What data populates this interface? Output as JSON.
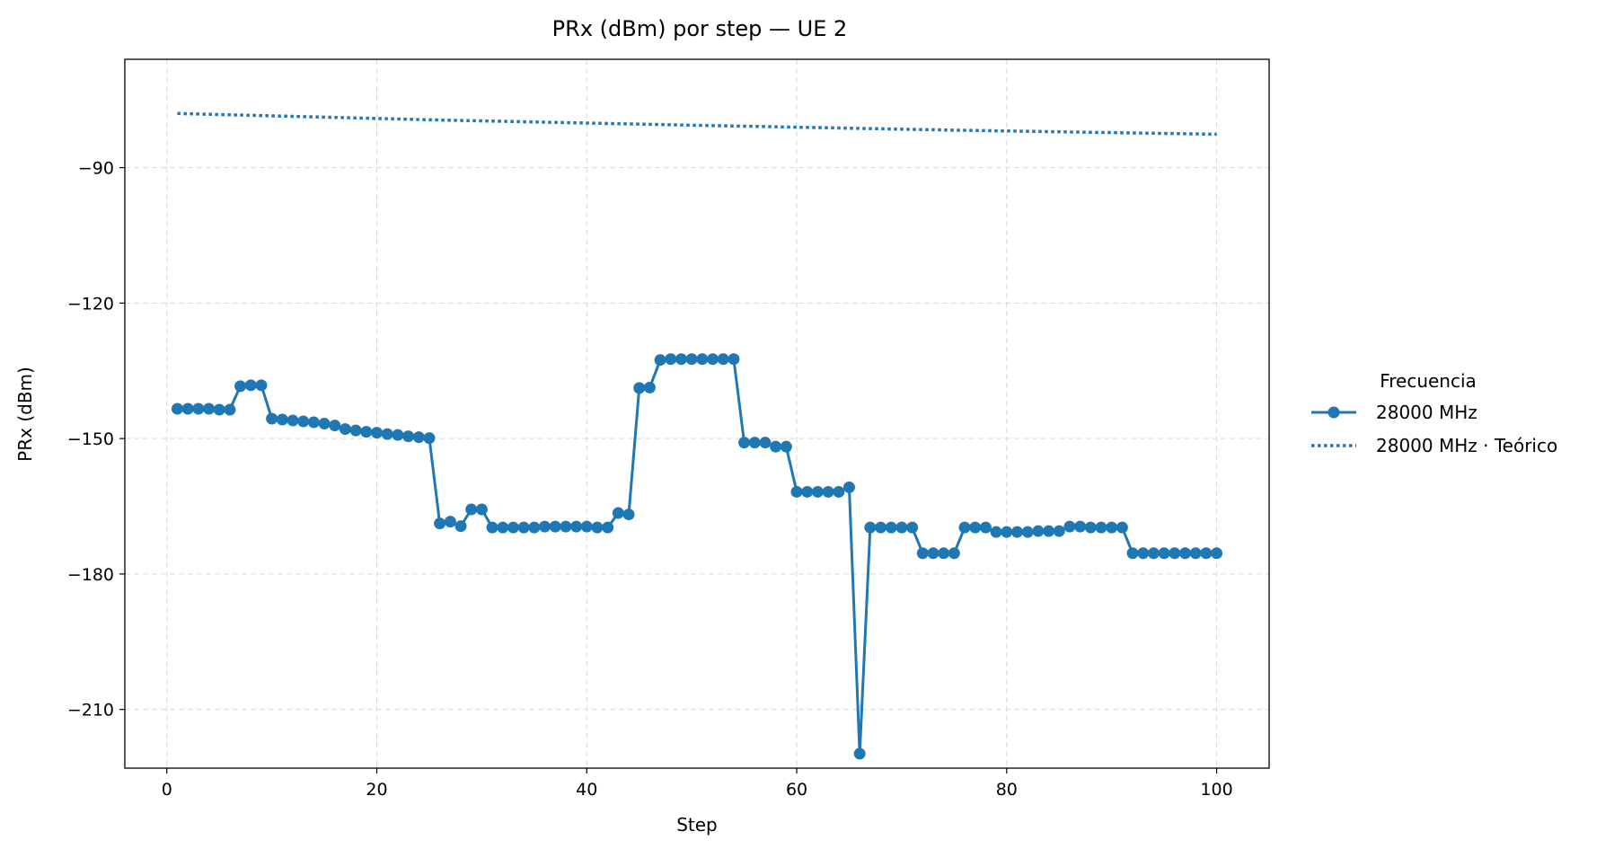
{
  "chart_data": {
    "type": "line",
    "title": "PRx (dBm) por step — UE 2",
    "xlabel": "Step",
    "ylabel": "PRx (dBm)",
    "xlim": [
      -4,
      105
    ],
    "ylim": [
      -223,
      -66
    ],
    "xticks": [
      0,
      20,
      40,
      60,
      80,
      100
    ],
    "xtick_labels": [
      "0",
      "20",
      "40",
      "60",
      "80",
      "100"
    ],
    "yticks": [
      -90,
      -120,
      -150,
      -180,
      -210
    ],
    "ytick_labels": [
      "−90",
      "−120",
      "−150",
      "−180",
      "−210"
    ],
    "grid": true,
    "legend": {
      "title": "Frecuencia",
      "placement": "right, outside plot"
    },
    "series": [
      {
        "name": "28000 MHz",
        "style": "solid line with circle markers",
        "color": "#1f77b4",
        "x": [
          1,
          2,
          3,
          4,
          5,
          6,
          7,
          8,
          9,
          10,
          11,
          12,
          13,
          14,
          15,
          16,
          17,
          18,
          19,
          20,
          21,
          22,
          23,
          24,
          25,
          26,
          27,
          28,
          29,
          30,
          31,
          32,
          33,
          34,
          35,
          36,
          37,
          38,
          39,
          40,
          41,
          42,
          43,
          44,
          45,
          46,
          47,
          48,
          49,
          50,
          51,
          52,
          53,
          54,
          55,
          56,
          57,
          58,
          59,
          60,
          61,
          62,
          63,
          64,
          65,
          66,
          67,
          68,
          69,
          70,
          71,
          72,
          73,
          74,
          75,
          76,
          77,
          78,
          79,
          80,
          81,
          82,
          83,
          84,
          85,
          86,
          87,
          88,
          89,
          90,
          91,
          92,
          93,
          94,
          95,
          96,
          97,
          98,
          99,
          100
        ],
        "values": [
          -143.4,
          -143.4,
          -143.4,
          -143.4,
          -143.6,
          -143.6,
          -138.4,
          -138.2,
          -138.2,
          -145.6,
          -145.8,
          -146.0,
          -146.2,
          -146.4,
          -146.7,
          -147.1,
          -147.9,
          -148.2,
          -148.5,
          -148.7,
          -149.0,
          -149.2,
          -149.5,
          -149.7,
          -149.9,
          -168.8,
          -168.4,
          -169.4,
          -165.7,
          -165.7,
          -169.7,
          -169.7,
          -169.7,
          -169.7,
          -169.7,
          -169.5,
          -169.5,
          -169.5,
          -169.5,
          -169.5,
          -169.7,
          -169.7,
          -166.5,
          -166.8,
          -138.8,
          -138.7,
          -132.6,
          -132.4,
          -132.4,
          -132.4,
          -132.4,
          -132.4,
          -132.4,
          -132.4,
          -150.9,
          -150.9,
          -150.9,
          -151.8,
          -151.8,
          -161.8,
          -161.8,
          -161.8,
          -161.8,
          -161.8,
          -160.8,
          -219.8,
          -169.7,
          -169.7,
          -169.7,
          -169.7,
          -169.7,
          -175.4,
          -175.4,
          -175.4,
          -175.4,
          -169.7,
          -169.7,
          -169.7,
          -170.7,
          -170.7,
          -170.7,
          -170.7,
          -170.5,
          -170.5,
          -170.5,
          -169.5,
          -169.5,
          -169.7,
          -169.7,
          -169.7,
          -169.7,
          -175.4,
          -175.4,
          -175.4,
          -175.4,
          -175.4,
          -175.4,
          -175.4,
          -175.4,
          -175.4
        ]
      },
      {
        "name": "28000 MHz · Teórico",
        "style": "dotted line",
        "color": "#1f77b4",
        "x": [
          1,
          25,
          50,
          75,
          100
        ],
        "values": [
          -78.0,
          -79.4,
          -80.6,
          -81.7,
          -82.6
        ]
      }
    ]
  }
}
